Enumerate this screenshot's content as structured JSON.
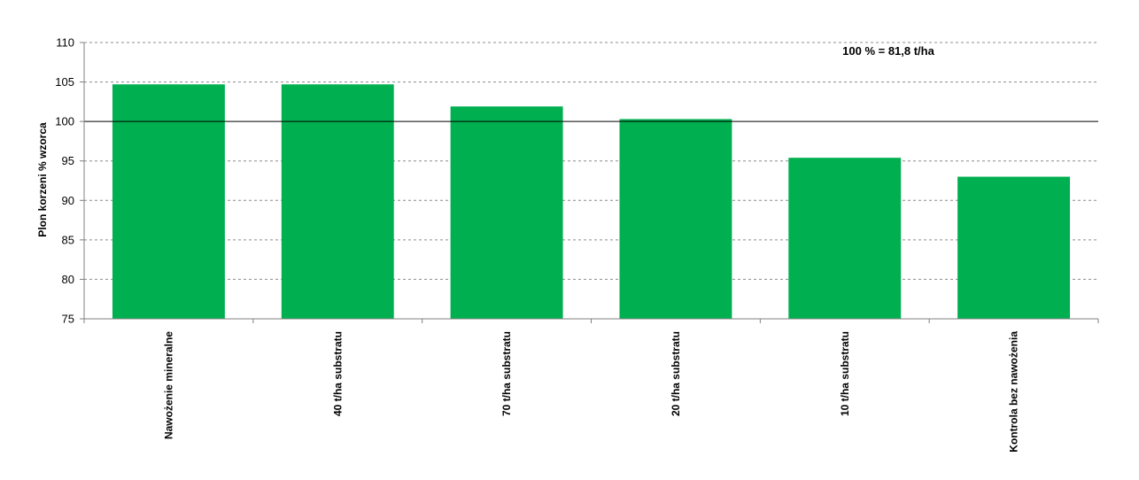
{
  "chart_data": {
    "type": "bar",
    "categories": [
      "Nawożenie mineralne",
      "40 t/ha substratu",
      "70 t/ha substratu",
      "20 t/ha substratu",
      "10 t/ha substratu",
      "Kontrola bez nawożenia"
    ],
    "values": [
      104.7,
      104.7,
      101.9,
      100.3,
      95.4,
      93.0
    ],
    "title": "",
    "xlabel": "",
    "ylabel": "Plon korzeni % wzorca",
    "ylim": [
      75,
      110
    ],
    "yticks": [
      75,
      80,
      85,
      90,
      95,
      100,
      105,
      110
    ],
    "reference_line": 100,
    "annotation": "100 % = 81,8 t/ha",
    "grid": true,
    "legend": "none",
    "bar_color": "#00b050"
  }
}
